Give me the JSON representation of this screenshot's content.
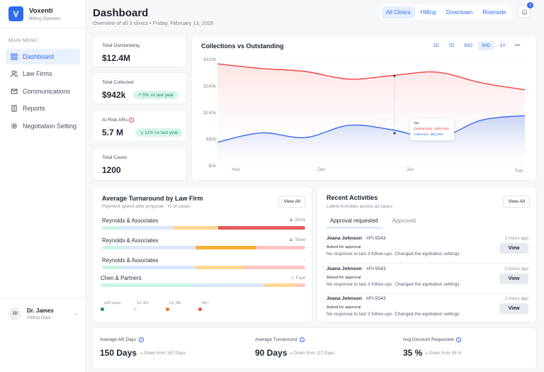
{
  "brand": {
    "name": "Voxenti",
    "role": "Billing Operator",
    "logo_letter": "V"
  },
  "sidebar": {
    "menu_label": "MAIN MENU",
    "items": [
      {
        "label": "Dashboard",
        "icon": "grid-icon",
        "active": true
      },
      {
        "label": "Law Firms",
        "icon": "users-icon"
      },
      {
        "label": "Communications",
        "icon": "mail-icon"
      },
      {
        "label": "Reports",
        "icon": "building-icon"
      },
      {
        "label": "Negotiation Setting",
        "icon": "gear-icon"
      }
    ],
    "user": {
      "initials": "JD",
      "name": "Dr. James",
      "dept": "Hilltop Dept."
    }
  },
  "header": {
    "title": "Dashboard",
    "subtitle": "Overview of all 3 clinics • Friday, February 13, 2026",
    "clinics": [
      "All Clinics",
      "Hilltop",
      "Downtown",
      "Riverside"
    ],
    "active_clinic": "All Clinics",
    "notifications": "3"
  },
  "kpis": [
    {
      "label": "Total Outstanding",
      "value": "$12.4M"
    },
    {
      "label": "Total Collected",
      "value": "$942k",
      "change": "5% vs last year"
    },
    {
      "label": "At Risk ARs",
      "value": "5.7 M",
      "change": "11% vs last year"
    },
    {
      "label": "Total Cases",
      "value": "1200"
    }
  ],
  "chart": {
    "title": "Collections vs Outstanding",
    "ranges": [
      "1D",
      "7D",
      "30D",
      "90D",
      "1Y"
    ],
    "active_range": "90D",
    "more": "•••",
    "tooltip": {
      "title": "Jan",
      "outstanding": "Outstanding : $254,000",
      "collected": "Collected : $82,000"
    }
  },
  "chart_data": {
    "type": "area",
    "title": "Collections vs Outstanding",
    "x": [
      "Oct 25",
      "Nov 10",
      "Nov 27",
      "Dec 11",
      "Dec 27",
      "Jan 11",
      "Jan 26",
      "Feb 10"
    ],
    "x_ticks": [
      "Nov",
      "Dec",
      "Jan",
      "Feb"
    ],
    "y_ticks": [
      "$0k",
      "$80k",
      "$160k",
      "$240k",
      "$320k"
    ],
    "ylim": [
      0,
      320000
    ],
    "grid": true,
    "series": [
      {
        "name": "Outstanding",
        "color": "#ef4444",
        "values": [
          307000,
          293000,
          284000,
          261000,
          272000,
          282000,
          250000,
          229000
        ]
      },
      {
        "name": "Collected",
        "color": "#3b6cf0",
        "values": [
          71000,
          99000,
          85000,
          122000,
          108000,
          83000,
          137000,
          151000
        ]
      }
    ]
  },
  "turnaround": {
    "title": "Average Turnaround by Law Firm",
    "subtitle": "Payment speed after proposal  · % of cases",
    "view_all": "View All",
    "firms": [
      {
        "name": "Reynolds & Associates",
        "status": "▲ Slow",
        "segments": [
          10,
          25,
          22,
          43
        ],
        "strong": 3
      },
      {
        "name": "Reynolds & Associates",
        "status": "▲ Slow",
        "segments": [
          10,
          36,
          30,
          24
        ],
        "strong": 2
      },
      {
        "name": "Reynolds & Associates",
        "status": "-",
        "segments": [
          10,
          36,
          24,
          30
        ],
        "strong": -1
      },
      {
        "name": "Chen & Partners",
        "status": "✓ Fast",
        "segments": [
          45,
          35,
          15,
          5
        ],
        "strong": -1
      }
    ],
    "legend": [
      {
        "label": "≤30 days",
        "color": "#1f8a5a"
      },
      {
        "label": "31–60",
        "color": "#dbe5fb"
      },
      {
        "label": "61–90",
        "color": "#f97316"
      },
      {
        "label": "90+",
        "color": "#ef4444"
      }
    ]
  },
  "activities": {
    "title": "Recent Activities",
    "subtitle": "Latest Activities across all cases",
    "view_all": "View All",
    "tabs": [
      "Approval requested",
      "Approved"
    ],
    "items": [
      {
        "name": "Joana Johnson",
        "id": "#PI-5543",
        "time": "2 hours ago",
        "action": "Asked for approval",
        "desc": "No response to last 3 follow-ups. Changed the egotiation settings.",
        "button": "View"
      },
      {
        "name": "Joana Johnson",
        "id": "#PI-5543",
        "time": "2 hours ago",
        "action": "Asked for approval",
        "desc": "No response to last 3 follow-ups. Changed the egotiation settings.",
        "button": "View"
      },
      {
        "name": "Joana Johnson",
        "id": "#PI-5543",
        "time": "2 hours ago",
        "action": "Asked for approval",
        "desc": "No response to last 3 follow-ups. Changed the egotiation settings.",
        "button": "View"
      }
    ]
  },
  "stats": [
    {
      "label": "Average AR Days",
      "value": "150 Days",
      "change": "Down from 167 Days"
    },
    {
      "label": "Average Turnaround",
      "value": "90 Days",
      "change": "Down from 117 Days"
    },
    {
      "label": "Avg Discount Requested",
      "value": "35 %",
      "change": "Down from 39 %"
    }
  ]
}
